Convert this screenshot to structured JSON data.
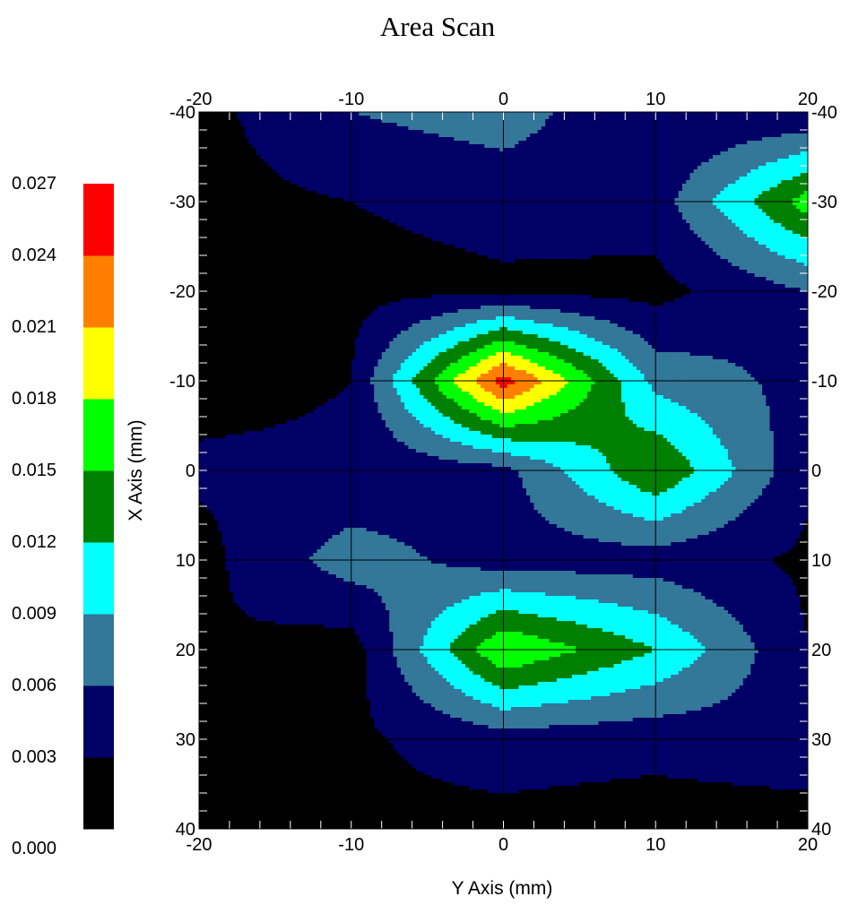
{
  "chart_data": {
    "type": "heatmap",
    "title": "Area Scan",
    "xlabel": "Y Axis (mm)",
    "ylabel": "X Axis (mm)",
    "xlim": [
      -20,
      20
    ],
    "ylim": [
      -40,
      40
    ],
    "x_ticks": [
      "-20",
      "-10",
      "0",
      "10",
      "20"
    ],
    "y_ticks": [
      "-40",
      "-30",
      "-20",
      "-10",
      "0",
      "10",
      "20",
      "30",
      "40"
    ],
    "y_ticks_right": [
      "-40",
      "-30",
      "-20",
      "-10",
      "0",
      "10",
      "20",
      "30",
      "40"
    ],
    "grid": true,
    "x": [
      -20,
      -10,
      0,
      10,
      20
    ],
    "y": [
      -40,
      -30,
      -20,
      -10,
      0,
      10,
      20,
      30,
      40
    ],
    "z": [
      [
        0.002,
        0.006,
        0.0075,
        0.003,
        0.003
      ],
      [
        0.002,
        0.003,
        0.004,
        0.0045,
        0.0165
      ],
      [
        0.0015,
        0.002,
        0.0025,
        0.002,
        0.006
      ],
      [
        0.002,
        0.003,
        0.0255,
        0.008,
        0.005
      ],
      [
        0.0035,
        0.0035,
        0.005,
        0.015,
        0.0035
      ],
      [
        0.002,
        0.0075,
        0.0045,
        0.0045,
        0.0025
      ],
      [
        0.003,
        0.0015,
        0.018,
        0.012,
        0.003
      ],
      [
        0.0025,
        0.0025,
        0.0045,
        0.004,
        0.005
      ],
      [
        0.0015,
        0.0025,
        0.002,
        0.0015,
        0.0015
      ]
    ],
    "colorbar": {
      "levels": [
        0.0,
        0.003,
        0.006,
        0.009,
        0.012,
        0.015,
        0.018,
        0.021,
        0.024,
        0.027
      ],
      "labels": [
        "0.000",
        "0.003",
        "0.006",
        "0.009",
        "0.012",
        "0.015",
        "0.018",
        "0.021",
        "0.024",
        "0.027"
      ],
      "colors": [
        "#000000",
        "#000066",
        "#337799",
        "#00ffff",
        "#008000",
        "#00ff00",
        "#ffff00",
        "#ff8000",
        "#ff0000"
      ],
      "placement": "left"
    }
  }
}
